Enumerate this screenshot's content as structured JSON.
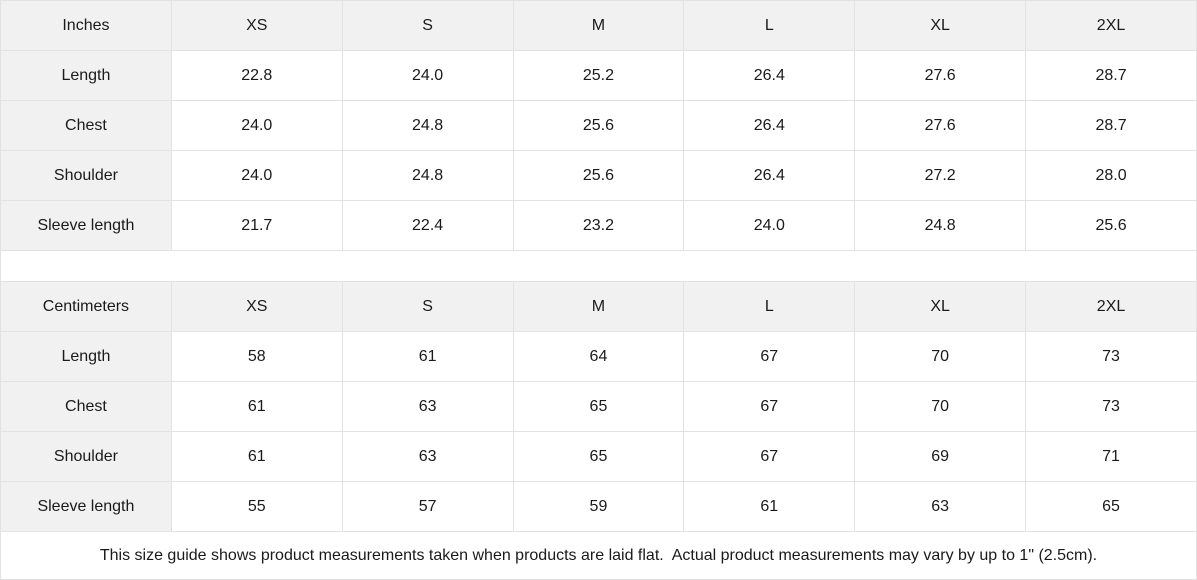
{
  "colors": {
    "header_bg": "#f1f1f1",
    "border": "#e2e2e2",
    "text": "#1a1a1a",
    "cell_bg": "#ffffff"
  },
  "tables": [
    {
      "unit_label": "Inches",
      "columns": [
        "XS",
        "S",
        "M",
        "L",
        "XL",
        "2XL"
      ],
      "rows": [
        {
          "label": "Length",
          "values": [
            "22.8",
            "24.0",
            "25.2",
            "26.4",
            "27.6",
            "28.7"
          ]
        },
        {
          "label": "Chest",
          "values": [
            "24.0",
            "24.8",
            "25.6",
            "26.4",
            "27.6",
            "28.7"
          ]
        },
        {
          "label": "Shoulder",
          "values": [
            "24.0",
            "24.8",
            "25.6",
            "26.4",
            "27.2",
            "28.0"
          ]
        },
        {
          "label": "Sleeve length",
          "values": [
            "21.7",
            "22.4",
            "23.2",
            "24.0",
            "24.8",
            "25.6"
          ]
        }
      ]
    },
    {
      "unit_label": "Centimeters",
      "columns": [
        "XS",
        "S",
        "M",
        "L",
        "XL",
        "2XL"
      ],
      "rows": [
        {
          "label": "Length",
          "values": [
            "58",
            "61",
            "64",
            "67",
            "70",
            "73"
          ]
        },
        {
          "label": "Chest",
          "values": [
            "61",
            "63",
            "65",
            "67",
            "70",
            "73"
          ]
        },
        {
          "label": "Shoulder",
          "values": [
            "61",
            "63",
            "65",
            "67",
            "69",
            "71"
          ]
        },
        {
          "label": "Sleeve length",
          "values": [
            "55",
            "57",
            "59",
            "61",
            "63",
            "65"
          ]
        }
      ]
    }
  ],
  "footer": {
    "note": "This size guide shows product measurements taken when products are laid flat.  Actual product measurements may vary by up to 1\" (2.5cm)."
  }
}
